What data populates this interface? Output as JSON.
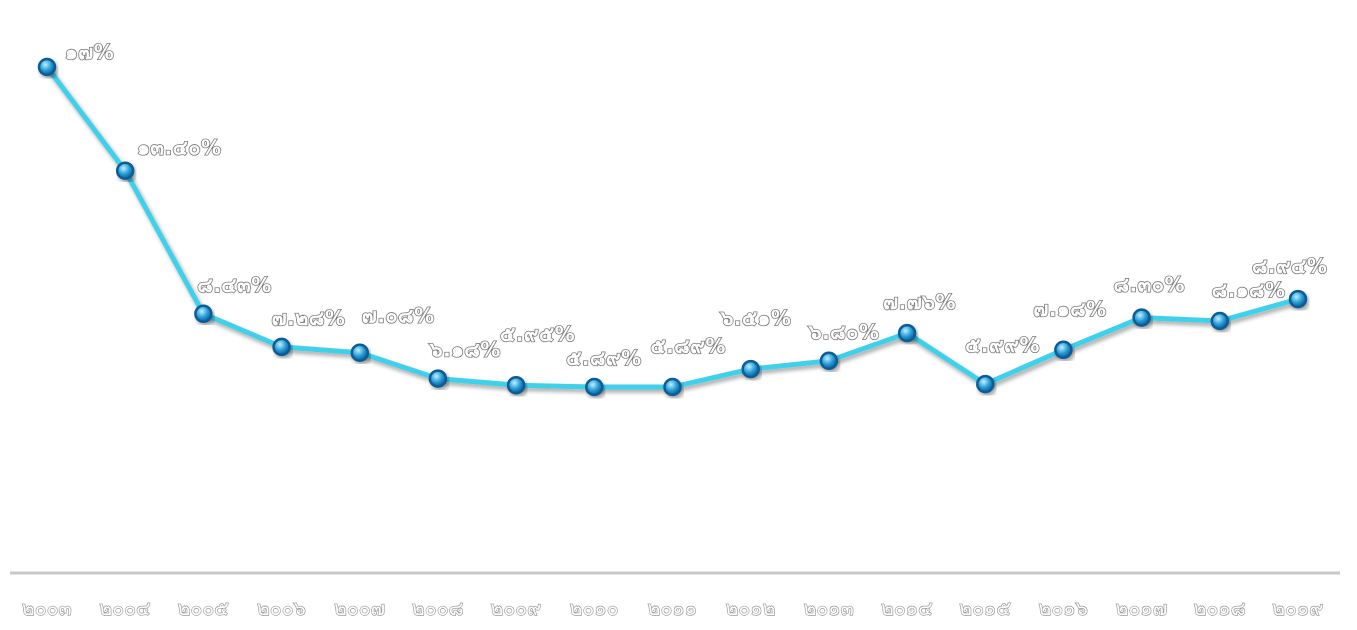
{
  "chart_data": {
    "type": "line",
    "title": "",
    "xlabel": "",
    "ylabel": "",
    "categories": [
      "๒๐๐๓",
      "๒๐๐๔",
      "๒๐๐๕",
      "๒๐๐๖",
      "๒๐๐๗",
      "๒๐๐๘",
      "๒๐๐๙",
      "๒๐๑๐",
      "๒๐๑๑",
      "๒๐๑๒",
      "๒๐๑๓",
      "๒๐๑๔",
      "๒๐๑๕",
      "๒๐๑๖",
      "๒๐๑๗",
      "๒๐๑๘",
      "๒๐๑๙"
    ],
    "values": [
      17,
      13.4,
      8.43,
      7.28,
      7.08,
      6.18,
      5.95,
      5.89,
      5.89,
      6.51,
      6.8,
      7.76,
      5.99,
      7.18,
      8.3,
      8.18,
      8.94
    ],
    "data_labels": [
      "๑๗%",
      "๑๓.๔๐%",
      "๘.๔๓%",
      "๗.๒๘%",
      "๗.๐๘%",
      "๖.๑๘%",
      "๕.๙๕%",
      "๕.๘๙%",
      "๕.๘๙%",
      "๖.๕๑%",
      "๖.๘๐%",
      "๗.๗๖%",
      "๕.๙๙%",
      "๗.๑๘%",
      "๘.๓๐%",
      "๘.๑๘%",
      "๘.๙๔%"
    ],
    "ylim": [
      0,
      18
    ],
    "grid": false,
    "legend": "none",
    "colors": {
      "line": "#3fd0ea",
      "marker_fill": "#2a9fd8",
      "marker_stroke": "#0b5c96",
      "axis": "#c8c8c8"
    }
  }
}
